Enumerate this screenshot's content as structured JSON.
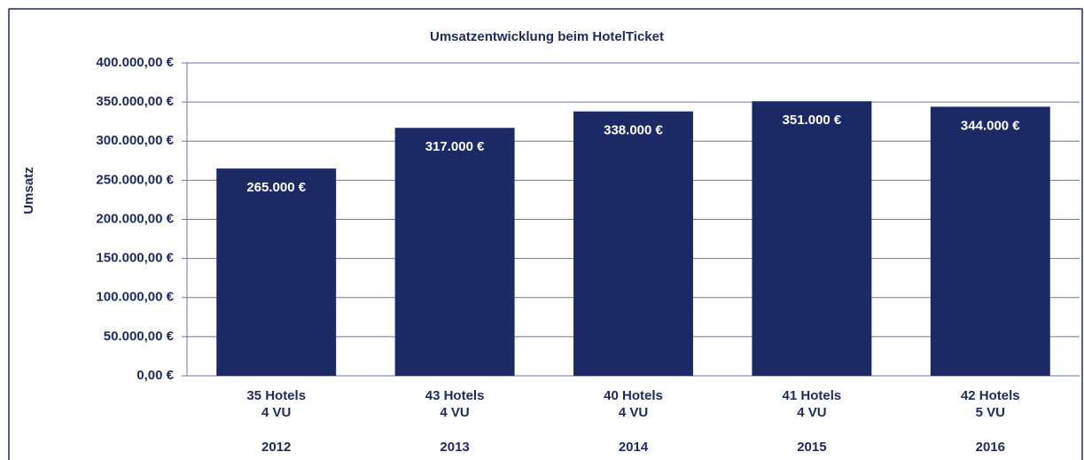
{
  "chart_data": {
    "type": "bar",
    "title": "Umsatzentwicklung beim HotelTicket",
    "y_label": "Umsatz",
    "categories": [
      "2012",
      "2013",
      "2014",
      "2015",
      "2016"
    ],
    "category_details": [
      [
        "35 Hotels",
        "4 VU"
      ],
      [
        "43 Hotels",
        "4 VU"
      ],
      [
        "40 Hotels",
        "4 VU"
      ],
      [
        "41 Hotels",
        "4 VU"
      ],
      [
        "42 Hotels",
        "5 VU"
      ]
    ],
    "values": [
      265000,
      317000,
      338000,
      351000,
      344000
    ],
    "value_labels": [
      "265.000 €",
      "317.000 €",
      "338.000 €",
      "351.000 €",
      "344.000 €"
    ],
    "color": "#1b2a64",
    "ylim": [
      0,
      400000
    ],
    "yticks": [
      {
        "value": 0,
        "label": "0,00 €"
      },
      {
        "value": 50000,
        "label": "50.000,00 €"
      },
      {
        "value": 100000,
        "label": "100.000,00 €"
      },
      {
        "value": 150000,
        "label": "150.000,00 €"
      },
      {
        "value": 200000,
        "label": "200.000,00 €"
      },
      {
        "value": 250000,
        "label": "250.000,00 €"
      },
      {
        "value": 300000,
        "label": "300.000,00 €"
      },
      {
        "value": 350000,
        "label": "350.000,00 €"
      },
      {
        "value": 400000,
        "label": "400.000,00 €"
      }
    ],
    "grid": true
  }
}
